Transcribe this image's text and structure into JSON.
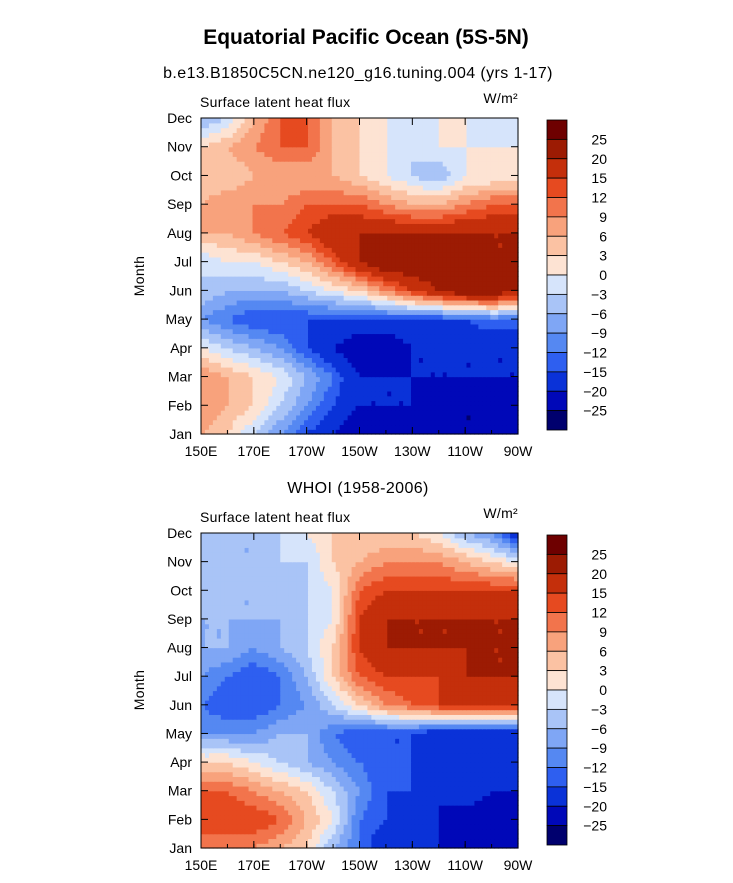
{
  "figure": {
    "title": "Equatorial Pacific Ocean (5S-5N)",
    "subtitle": "b.e13.B1850C5CN.ne120_g16.tuning.004 (yrs 1-17)"
  },
  "chart_data": [
    {
      "type": "heatmap",
      "title": "b.e13.B1850C5CN.ne120_g16.tuning.004 (yrs 1-17)",
      "left_label": "Surface latent heat flux",
      "units": "W/m²",
      "ylabel": "Month",
      "xlabel": "",
      "x_ticks": [
        "150E",
        "170E",
        "170W",
        "150W",
        "130W",
        "110W",
        "90W"
      ],
      "y_ticks": [
        "Jan",
        "Feb",
        "Mar",
        "Apr",
        "May",
        "Jun",
        "Jul",
        "Aug",
        "Sep",
        "Oct",
        "Nov",
        "Dec"
      ],
      "contour_levels": [
        -25,
        -20,
        -15,
        -12,
        -9,
        -6,
        -3,
        0,
        3,
        6,
        9,
        12,
        15,
        20,
        25
      ],
      "values": [
        [
          6,
          3,
          -3,
          -9,
          -15,
          -20,
          -25,
          -25,
          -25,
          -25,
          -25,
          -25,
          -25
        ],
        [
          9,
          6,
          3,
          -3,
          -9,
          -15,
          -20,
          -20,
          -20,
          -25,
          -25,
          -25,
          -25
        ],
        [
          9,
          6,
          3,
          0,
          -6,
          -12,
          -20,
          -20,
          -20,
          -20,
          -20,
          -20,
          -20
        ],
        [
          0,
          -3,
          -6,
          -9,
          -15,
          -20,
          -25,
          -25,
          -20,
          -20,
          -20,
          -20,
          -20
        ],
        [
          -9,
          -12,
          -15,
          -15,
          -15,
          -15,
          -15,
          -15,
          -15,
          -15,
          -15,
          -12,
          -12
        ],
        [
          -3,
          -6,
          -6,
          -6,
          -3,
          0,
          3,
          9,
          15,
          20,
          25,
          25,
          20
        ],
        [
          -3,
          0,
          0,
          3,
          6,
          12,
          20,
          25,
          25,
          25,
          25,
          20,
          20
        ],
        [
          6,
          6,
          9,
          12,
          15,
          20,
          20,
          20,
          20,
          20,
          20,
          20,
          20
        ],
        [
          6,
          9,
          9,
          9,
          12,
          12,
          12,
          9,
          6,
          6,
          9,
          12,
          12
        ],
        [
          3,
          3,
          6,
          6,
          6,
          6,
          3,
          0,
          -3,
          -6,
          0,
          0,
          0
        ],
        [
          3,
          6,
          9,
          12,
          12,
          6,
          3,
          0,
          -3,
          0,
          0,
          0,
          0
        ],
        [
          -6,
          -3,
          6,
          12,
          12,
          6,
          3,
          0,
          0,
          0,
          0,
          -3,
          -3
        ]
      ],
      "colorbar_labels": [
        "25",
        "20",
        "15",
        "12",
        "9",
        "6",
        "3",
        "0",
        "−3",
        "−6",
        "−9",
        "−12",
        "−15",
        "−20",
        "−25"
      ]
    },
    {
      "type": "heatmap",
      "title": "WHOI (1958-2006)",
      "left_label": "Surface latent heat flux",
      "units": "W/m²",
      "ylabel": "Month",
      "xlabel": "",
      "x_ticks": [
        "150E",
        "170E",
        "170W",
        "150W",
        "130W",
        "110W",
        "90W"
      ],
      "y_ticks": [
        "Jan",
        "Feb",
        "Mar",
        "Apr",
        "May",
        "Jun",
        "Jul",
        "Aug",
        "Sep",
        "Oct",
        "Nov",
        "Dec"
      ],
      "contour_levels": [
        -25,
        -20,
        -15,
        -12,
        -9,
        -6,
        -3,
        0,
        3,
        6,
        9,
        12,
        15,
        20,
        25
      ],
      "values": [
        [
          9,
          9,
          9,
          6,
          3,
          -6,
          -12,
          -20,
          -20,
          -20,
          -20,
          -25,
          -25
        ],
        [
          15,
          15,
          15,
          12,
          6,
          0,
          -12,
          -15,
          -20,
          -20,
          -25,
          -25,
          -25
        ],
        [
          12,
          12,
          9,
          6,
          3,
          -3,
          -9,
          -15,
          -15,
          -20,
          -15,
          -20,
          -20
        ],
        [
          3,
          3,
          0,
          -3,
          -6,
          -9,
          -12,
          -15,
          -15,
          -15,
          -15,
          -15,
          -15
        ],
        [
          -9,
          -9,
          -9,
          -6,
          -6,
          -12,
          -15,
          -15,
          -15,
          -20,
          -20,
          -20,
          -20
        ],
        [
          -12,
          -15,
          -15,
          -12,
          -9,
          -3,
          3,
          9,
          12,
          15,
          15,
          15,
          15
        ],
        [
          -9,
          -12,
          -15,
          -12,
          -6,
          3,
          12,
          15,
          15,
          15,
          20,
          20,
          20
        ],
        [
          -6,
          -6,
          -9,
          -6,
          -3,
          3,
          15,
          20,
          20,
          20,
          20,
          20,
          20
        ],
        [
          -6,
          -6,
          -6,
          -6,
          -3,
          0,
          15,
          20,
          20,
          20,
          20,
          20,
          20
        ],
        [
          -3,
          -6,
          -6,
          -6,
          -3,
          0,
          12,
          15,
          15,
          15,
          15,
          15,
          15
        ],
        [
          -3,
          -6,
          -6,
          -3,
          -3,
          3,
          6,
          9,
          9,
          9,
          6,
          3,
          0
        ],
        [
          -6,
          -6,
          -6,
          -3,
          0,
          3,
          3,
          3,
          3,
          0,
          -6,
          -9,
          -20
        ]
      ],
      "colorbar_labels": [
        "25",
        "20",
        "15",
        "12",
        "9",
        "6",
        "3",
        "0",
        "−3",
        "−6",
        "−9",
        "−12",
        "−15",
        "−20",
        "−25"
      ]
    }
  ],
  "colors": {
    "palette": [
      "#00006e",
      "#0008b8",
      "#0a32d8",
      "#2e5ff0",
      "#5588f2",
      "#7fa6f5",
      "#a9c4f7",
      "#d6e4fb",
      "#fde3d3",
      "#fbc2a3",
      "#f8a27c",
      "#f2744c",
      "#e64a20",
      "#c42f0b",
      "#9c1b03",
      "#6e0000"
    ]
  }
}
